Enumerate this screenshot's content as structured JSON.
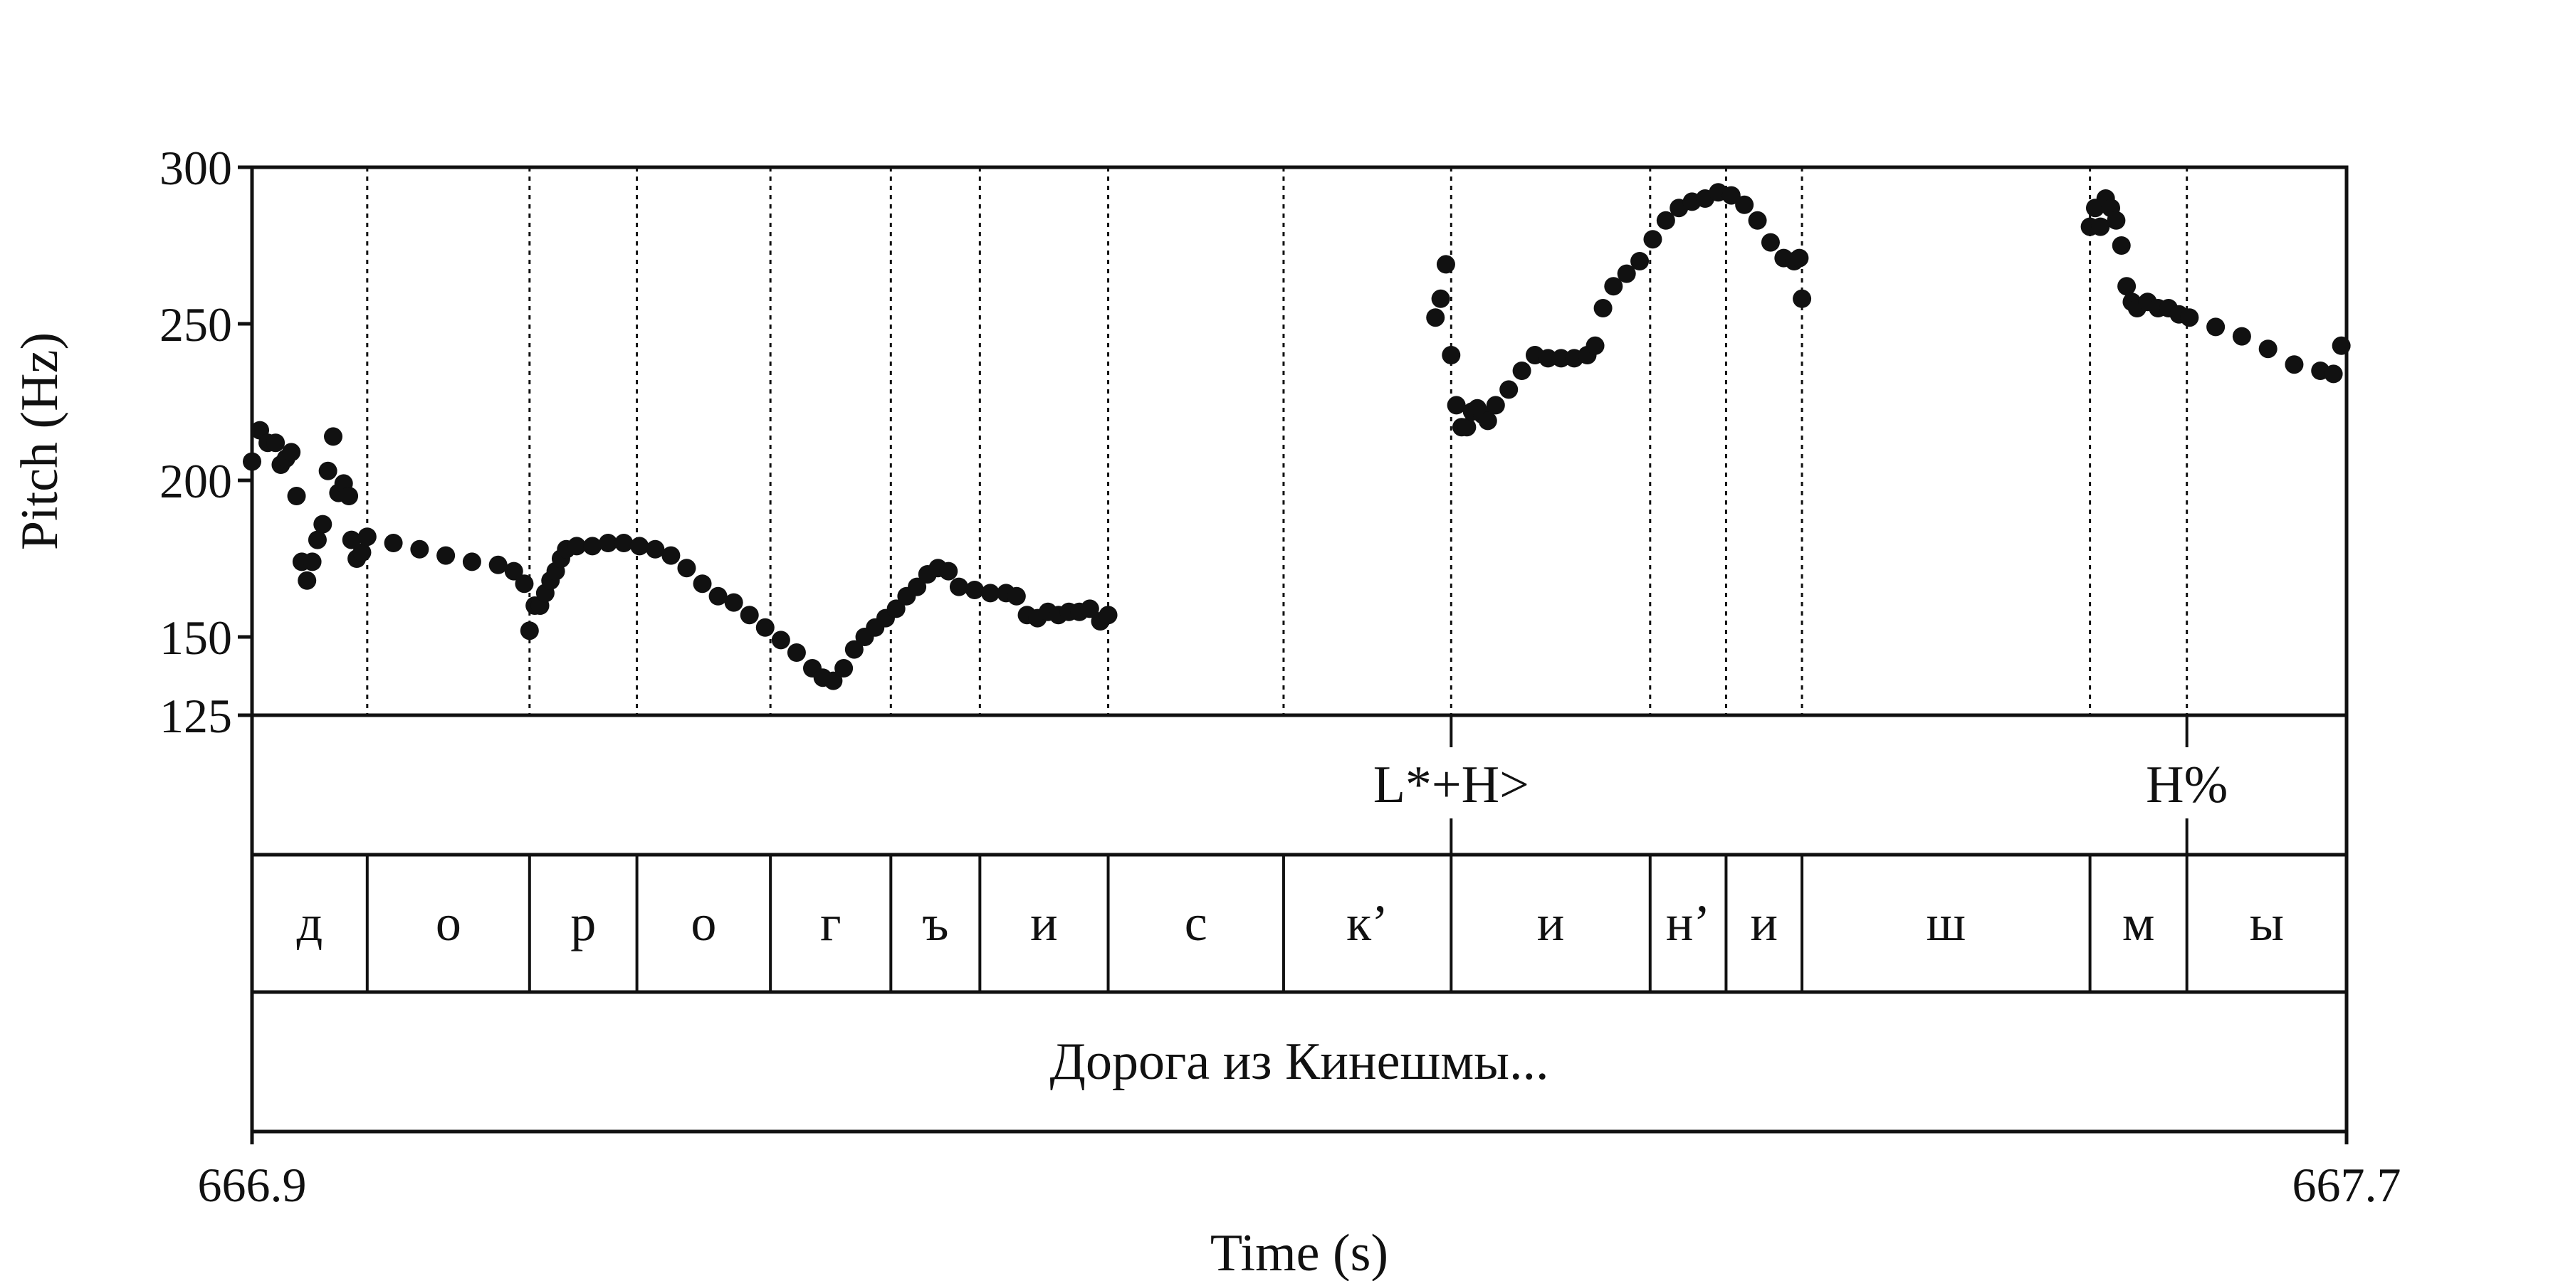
{
  "chart_data": {
    "type": "scatter",
    "title": "",
    "xlabel": "Time (s)",
    "ylabel": "Pitch (Hz)",
    "xlim": [
      666.9,
      667.7
    ],
    "ylim": [
      125,
      300
    ],
    "x_tick_labels": [
      "666.9",
      "667.7"
    ],
    "y_ticks": [
      {
        "value": 125,
        "label": "125"
      },
      {
        "value": 150,
        "label": "150"
      },
      {
        "value": 200,
        "label": "200"
      },
      {
        "value": 250,
        "label": "250"
      },
      {
        "value": 300,
        "label": "300"
      }
    ],
    "segment_boundaries": [
      666.944,
      667.006,
      667.047,
      667.098,
      667.144,
      667.178,
      667.227,
      667.294,
      667.358,
      667.434,
      667.463,
      667.492,
      667.602,
      667.639
    ],
    "tones": [
      {
        "label": "L*+H>",
        "time": 667.358
      },
      {
        "label": "H%",
        "time": 667.639
      }
    ],
    "segments": [
      {
        "label": "д",
        "start": 666.9,
        "end": 666.944
      },
      {
        "label": "о",
        "start": 666.944,
        "end": 667.006
      },
      {
        "label": "р",
        "start": 667.006,
        "end": 667.047
      },
      {
        "label": "о",
        "start": 667.047,
        "end": 667.098
      },
      {
        "label": "г",
        "start": 667.098,
        "end": 667.144
      },
      {
        "label": "ъ",
        "start": 667.144,
        "end": 667.178
      },
      {
        "label": "и",
        "start": 667.178,
        "end": 667.227
      },
      {
        "label": "с",
        "start": 667.227,
        "end": 667.294
      },
      {
        "label": "к’",
        "start": 667.294,
        "end": 667.358
      },
      {
        "label": "и",
        "start": 667.358,
        "end": 667.434
      },
      {
        "label": "н’",
        "start": 667.434,
        "end": 667.463
      },
      {
        "label": "и",
        "start": 667.463,
        "end": 667.492
      },
      {
        "label": "ш",
        "start": 667.492,
        "end": 667.602
      },
      {
        "label": "м",
        "start": 667.602,
        "end": 667.639
      },
      {
        "label": "ы",
        "start": 667.639,
        "end": 667.7
      }
    ],
    "words": [
      {
        "label": "Дорога из Кинешмы...",
        "start": 666.9,
        "end": 667.7
      }
    ],
    "pitch_groups": [
      {
        "points": [
          [
            666.9,
            206
          ],
          [
            666.903,
            216
          ],
          [
            666.906,
            212
          ],
          [
            666.909,
            212
          ],
          [
            666.911,
            205
          ],
          [
            666.913,
            207
          ],
          [
            666.915,
            209
          ],
          [
            666.917,
            195
          ],
          [
            666.919,
            174
          ],
          [
            666.921,
            168
          ],
          [
            666.923,
            174
          ],
          [
            666.925,
            181
          ],
          [
            666.927,
            186
          ],
          [
            666.929,
            203
          ],
          [
            666.931,
            214
          ],
          [
            666.933,
            196
          ],
          [
            666.935,
            199
          ],
          [
            666.937,
            195
          ],
          [
            666.938,
            181
          ],
          [
            666.94,
            175
          ],
          [
            666.942,
            177
          ]
        ]
      },
      {
        "points": [
          [
            666.944,
            182
          ],
          [
            666.954,
            180
          ],
          [
            666.964,
            178
          ],
          [
            666.974,
            176
          ],
          [
            666.984,
            174
          ],
          [
            666.994,
            173
          ],
          [
            667.0,
            171
          ],
          [
            667.004,
            167
          ]
        ]
      },
      {
        "points": [
          [
            667.006,
            152
          ],
          [
            667.008,
            160
          ],
          [
            667.01,
            160
          ],
          [
            667.012,
            164
          ],
          [
            667.014,
            168
          ],
          [
            667.016,
            171
          ],
          [
            667.018,
            175
          ],
          [
            667.02,
            178
          ],
          [
            667.024,
            179
          ],
          [
            667.03,
            179
          ],
          [
            667.036,
            180
          ],
          [
            667.042,
            180
          ],
          [
            667.048,
            179
          ],
          [
            667.054,
            178
          ],
          [
            667.06,
            176
          ],
          [
            667.066,
            172
          ],
          [
            667.072,
            167
          ],
          [
            667.078,
            163
          ],
          [
            667.084,
            161
          ],
          [
            667.09,
            157
          ],
          [
            667.096,
            153
          ],
          [
            667.102,
            149
          ],
          [
            667.108,
            145
          ],
          [
            667.114,
            140
          ],
          [
            667.118,
            137
          ],
          [
            667.122,
            136
          ],
          [
            667.126,
            140
          ],
          [
            667.13,
            146
          ],
          [
            667.134,
            150
          ],
          [
            667.138,
            153
          ],
          [
            667.142,
            156
          ],
          [
            667.146,
            159
          ],
          [
            667.15,
            163
          ],
          [
            667.154,
            166
          ],
          [
            667.158,
            170
          ],
          [
            667.162,
            172
          ],
          [
            667.166,
            171
          ],
          [
            667.17,
            166
          ],
          [
            667.176,
            165
          ],
          [
            667.182,
            164
          ],
          [
            667.188,
            164
          ],
          [
            667.192,
            163
          ],
          [
            667.196,
            157
          ],
          [
            667.2,
            156
          ],
          [
            667.204,
            158
          ],
          [
            667.208,
            157
          ],
          [
            667.212,
            158
          ],
          [
            667.216,
            158
          ],
          [
            667.22,
            159
          ],
          [
            667.224,
            155
          ],
          [
            667.227,
            157
          ]
        ]
      },
      {
        "points": [
          [
            667.352,
            252
          ],
          [
            667.354,
            258
          ],
          [
            667.356,
            269
          ],
          [
            667.358,
            240
          ],
          [
            667.36,
            224
          ],
          [
            667.362,
            217
          ],
          [
            667.364,
            217
          ],
          [
            667.366,
            222
          ],
          [
            667.368,
            223
          ],
          [
            667.37,
            221
          ],
          [
            667.372,
            219
          ],
          [
            667.375,
            224
          ],
          [
            667.38,
            229
          ],
          [
            667.385,
            235
          ],
          [
            667.39,
            240
          ],
          [
            667.395,
            239
          ],
          [
            667.4,
            239
          ],
          [
            667.405,
            239
          ],
          [
            667.41,
            240
          ],
          [
            667.413,
            243
          ],
          [
            667.416,
            255
          ],
          [
            667.42,
            262
          ],
          [
            667.425,
            266
          ],
          [
            667.43,
            270
          ],
          [
            667.435,
            277
          ],
          [
            667.44,
            283
          ],
          [
            667.445,
            287
          ],
          [
            667.45,
            289
          ],
          [
            667.455,
            290
          ],
          [
            667.46,
            292
          ],
          [
            667.465,
            291
          ],
          [
            667.47,
            288
          ],
          [
            667.475,
            283
          ],
          [
            667.48,
            276
          ],
          [
            667.485,
            271
          ],
          [
            667.489,
            270
          ],
          [
            667.491,
            271
          ],
          [
            667.492,
            258
          ]
        ]
      },
      {
        "points": [
          [
            667.602,
            281
          ],
          [
            667.604,
            287
          ],
          [
            667.606,
            281
          ],
          [
            667.608,
            290
          ],
          [
            667.61,
            287
          ],
          [
            667.612,
            283
          ],
          [
            667.614,
            275
          ],
          [
            667.616,
            262
          ],
          [
            667.618,
            257
          ],
          [
            667.62,
            255
          ],
          [
            667.624,
            257
          ],
          [
            667.628,
            255
          ],
          [
            667.632,
            255
          ],
          [
            667.636,
            253
          ],
          [
            667.64,
            252
          ],
          [
            667.65,
            249
          ],
          [
            667.66,
            246
          ],
          [
            667.67,
            242
          ],
          [
            667.68,
            237
          ],
          [
            667.69,
            235
          ],
          [
            667.695,
            234
          ],
          [
            667.698,
            243
          ]
        ]
      }
    ]
  }
}
